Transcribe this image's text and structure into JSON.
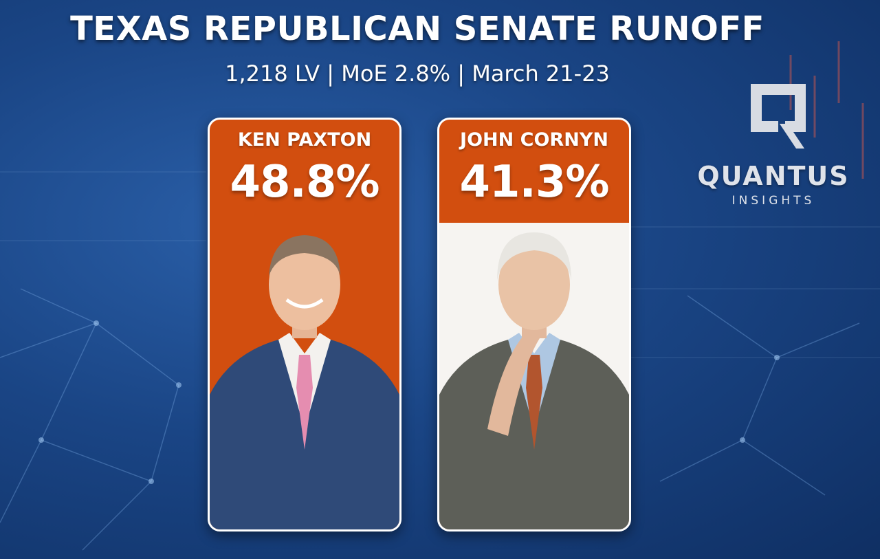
{
  "header": {
    "title": "TEXAS REPUBLICAN SENATE RUNOFF",
    "subtitle": "1,218 LV | MoE 2.8% | March 21-23"
  },
  "candidates": [
    {
      "name": "KEN PAXTON",
      "percent": "48.8%",
      "value": 48.8,
      "suit_color": "#2f4a78",
      "tie_color": "#e58db0"
    },
    {
      "name": "JOHN CORNYN",
      "percent": "41.3%",
      "value": 41.3,
      "suit_color": "#5d5f58",
      "tie_color": "#b2552e"
    }
  ],
  "logo": {
    "wordmark": "QUANTUS",
    "tagline": "INSIGHTS"
  },
  "colors": {
    "card_bg": "#d24e0f",
    "background": "#1a4585",
    "text": "#ffffff"
  }
}
